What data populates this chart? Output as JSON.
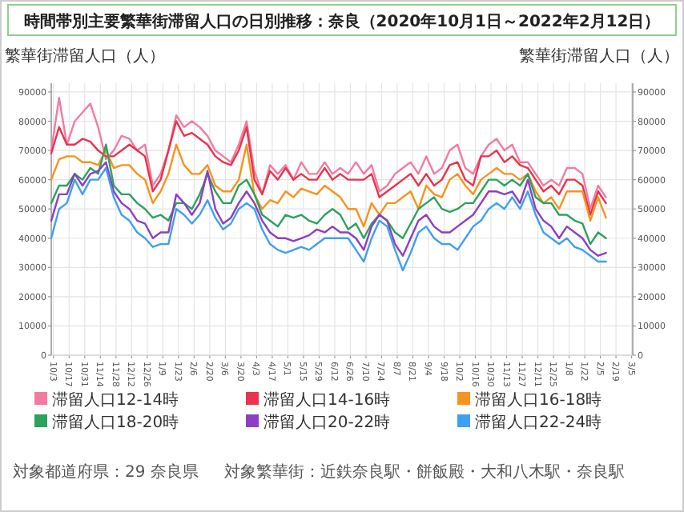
{
  "chart_data": {
    "type": "line",
    "title": "時間帯別主要繁華街滞留人口の日別推移：奈良（2020年10月1日～2022年2月12日）",
    "ylabel": "繁華街滞留人口（人）",
    "y2label": "繁華街滞留人口（人）",
    "annotations": [
      "対象都道府県：29 奈良県",
      "対象繁華街：近鉄奈良駅・餅飯殿・大和八木駅・奈良駅"
    ],
    "x": [
      "2020-10-01",
      "2020-10-08",
      "2020-10-15",
      "2020-10-22",
      "2020-10-29",
      "2020-11-05",
      "2020-11-12",
      "2020-11-19",
      "2020-11-26",
      "2020-12-03",
      "2020-12-10",
      "2020-12-17",
      "2020-12-24",
      "2020-12-31",
      "2021-01-07",
      "2021-01-14",
      "2021-01-21",
      "2021-01-28",
      "2021-02-04",
      "2021-02-11",
      "2021-02-18",
      "2021-02-25",
      "2021-03-04",
      "2021-03-11",
      "2021-03-18",
      "2021-03-25",
      "2021-04-01",
      "2021-04-08",
      "2021-04-15",
      "2021-04-22",
      "2021-04-29",
      "2021-05-06",
      "2021-05-13",
      "2021-05-20",
      "2021-05-27",
      "2021-06-03",
      "2021-06-10",
      "2021-06-17",
      "2021-06-24",
      "2021-07-01",
      "2021-07-08",
      "2021-07-15",
      "2021-07-22",
      "2021-07-29",
      "2021-08-05",
      "2021-08-12",
      "2021-08-19",
      "2021-08-26",
      "2021-09-02",
      "2021-09-09",
      "2021-09-16",
      "2021-09-23",
      "2021-09-30",
      "2021-10-07",
      "2021-10-14",
      "2021-10-21",
      "2021-10-28",
      "2021-11-04",
      "2021-11-11",
      "2021-11-18",
      "2021-11-25",
      "2021-12-02",
      "2021-12-09",
      "2021-12-16",
      "2021-12-23",
      "2021-12-30",
      "2022-01-06",
      "2022-01-13",
      "2022-01-20",
      "2022-01-27",
      "2022-02-03",
      "2022-02-10"
    ],
    "series": [
      {
        "name": "滞留人口12-14時",
        "color": "#f47ba0",
        "values": [
          70000,
          88000,
          72000,
          80000,
          83000,
          86000,
          78000,
          67000,
          70000,
          75000,
          74000,
          70000,
          72000,
          58000,
          62000,
          70000,
          82000,
          78000,
          80000,
          78000,
          75000,
          70000,
          68000,
          66000,
          72000,
          80000,
          63000,
          55000,
          65000,
          62000,
          65000,
          60000,
          66000,
          62000,
          62000,
          66000,
          62000,
          64000,
          62000,
          66000,
          62000,
          65000,
          56000,
          58000,
          62000,
          64000,
          66000,
          62000,
          68000,
          62000,
          64000,
          70000,
          72000,
          64000,
          62000,
          68000,
          72000,
          74000,
          70000,
          72000,
          66000,
          66000,
          62000,
          58000,
          60000,
          58000,
          64000,
          64000,
          62000,
          50000,
          58000,
          54000
        ]
      },
      {
        "name": "滞留人口14-16時",
        "color": "#e8344e",
        "values": [
          69000,
          78000,
          72000,
          72000,
          74000,
          73000,
          70000,
          68000,
          68000,
          70000,
          72000,
          70000,
          68000,
          56000,
          60000,
          70000,
          80000,
          75000,
          76000,
          74000,
          72000,
          68000,
          66000,
          65000,
          70000,
          78000,
          60000,
          55000,
          63000,
          60000,
          64000,
          60000,
          62000,
          60000,
          60000,
          64000,
          60000,
          62000,
          60000,
          60000,
          60000,
          62000,
          54000,
          56000,
          58000,
          60000,
          62000,
          58000,
          62000,
          58000,
          60000,
          65000,
          66000,
          60000,
          58000,
          68000,
          68000,
          70000,
          66000,
          68000,
          65000,
          64000,
          60000,
          56000,
          58000,
          55000,
          60000,
          60000,
          58000,
          48000,
          56000,
          52000
        ]
      },
      {
        "name": "滞留人口16-18時",
        "color": "#f7931e",
        "values": [
          60000,
          67000,
          68000,
          68000,
          66000,
          66000,
          65000,
          70000,
          64000,
          65000,
          65000,
          62000,
          60000,
          52000,
          56000,
          62000,
          72000,
          65000,
          62000,
          62000,
          65000,
          58000,
          56000,
          56000,
          60000,
          72000,
          55000,
          50000,
          53000,
          52000,
          56000,
          54000,
          57000,
          56000,
          55000,
          58000,
          56000,
          54000,
          50000,
          50000,
          44000,
          52000,
          48000,
          52000,
          52000,
          54000,
          56000,
          50000,
          58000,
          55000,
          54000,
          60000,
          62000,
          58000,
          55000,
          60000,
          62000,
          64000,
          62000,
          62000,
          60000,
          62000,
          56000,
          52000,
          54000,
          50000,
          56000,
          56000,
          56000,
          46000,
          54000,
          47000
        ]
      },
      {
        "name": "滞留人口18-20時",
        "color": "#2ca25f",
        "values": [
          52000,
          58000,
          58000,
          62000,
          60000,
          64000,
          62000,
          72000,
          58000,
          55000,
          55000,
          52000,
          50000,
          47000,
          48000,
          46000,
          52000,
          52000,
          50000,
          55000,
          62000,
          56000,
          52000,
          52000,
          58000,
          60000,
          55000,
          48000,
          46000,
          44000,
          48000,
          47000,
          48000,
          46000,
          45000,
          48000,
          50000,
          48000,
          43000,
          45000,
          40000,
          45000,
          48000,
          46000,
          42000,
          40000,
          45000,
          50000,
          52000,
          54000,
          50000,
          49000,
          50000,
          52000,
          52000,
          56000,
          60000,
          60000,
          58000,
          60000,
          58000,
          62000,
          54000,
          52000,
          52000,
          48000,
          48000,
          46000,
          45000,
          38000,
          42000,
          40000
        ]
      },
      {
        "name": "滞留人口20-22時",
        "color": "#8e3ec2",
        "values": [
          46000,
          55000,
          55000,
          62000,
          58000,
          62000,
          63000,
          66000,
          56000,
          52000,
          50000,
          46000,
          45000,
          40000,
          42000,
          42000,
          55000,
          52000,
          48000,
          52000,
          63000,
          50000,
          45000,
          47000,
          52000,
          56000,
          52000,
          46000,
          42000,
          40000,
          40000,
          39000,
          40000,
          41000,
          43000,
          42000,
          44000,
          42000,
          42000,
          40000,
          36000,
          44000,
          48000,
          46000,
          38000,
          34000,
          40000,
          46000,
          48000,
          44000,
          42000,
          42000,
          44000,
          46000,
          48000,
          52000,
          56000,
          56000,
          55000,
          56000,
          52000,
          60000,
          50000,
          46000,
          44000,
          40000,
          44000,
          42000,
          40000,
          36000,
          34000,
          35000
        ]
      },
      {
        "name": "滞留人口22-24時",
        "color": "#3fa0f0",
        "values": [
          40000,
          50000,
          52000,
          60000,
          55000,
          60000,
          60000,
          64000,
          54000,
          48000,
          46000,
          42000,
          40000,
          37000,
          38000,
          38000,
          50000,
          48000,
          45000,
          48000,
          53000,
          47000,
          43000,
          45000,
          50000,
          52000,
          50000,
          43000,
          38000,
          36000,
          35000,
          36000,
          37000,
          36000,
          38000,
          40000,
          40000,
          40000,
          40000,
          36000,
          32000,
          40000,
          46000,
          44000,
          36000,
          29000,
          35000,
          42000,
          44000,
          40000,
          38000,
          38000,
          36000,
          40000,
          44000,
          46000,
          50000,
          52000,
          50000,
          54000,
          50000,
          56000,
          48000,
          42000,
          40000,
          38000,
          40000,
          37000,
          36000,
          34000,
          32000,
          32000
        ]
      }
    ],
    "xlim": [
      "2020-10-01",
      "2022-03-06"
    ],
    "xticks": [
      {
        "value": "2020-10-03",
        "label": "10/3"
      },
      {
        "value": "2020-10-17",
        "label": "10/17"
      },
      {
        "value": "2020-10-31",
        "label": "10/31"
      },
      {
        "value": "2020-11-14",
        "label": "11/14"
      },
      {
        "value": "2020-11-28",
        "label": "11/28"
      },
      {
        "value": "2020-12-12",
        "label": "12/12"
      },
      {
        "value": "2020-12-26",
        "label": "12/26"
      },
      {
        "value": "2021-01-09",
        "label": "1/9"
      },
      {
        "value": "2021-01-23",
        "label": "1/23"
      },
      {
        "value": "2021-02-06",
        "label": "2/6"
      },
      {
        "value": "2021-02-20",
        "label": "2/20"
      },
      {
        "value": "2021-03-06",
        "label": "3/6"
      },
      {
        "value": "2021-03-20",
        "label": "3/20"
      },
      {
        "value": "2021-04-03",
        "label": "4/3"
      },
      {
        "value": "2021-04-17",
        "label": "4/17"
      },
      {
        "value": "2021-05-01",
        "label": "5/1"
      },
      {
        "value": "2021-05-15",
        "label": "5/15"
      },
      {
        "value": "2021-05-29",
        "label": "5/29"
      },
      {
        "value": "2021-06-12",
        "label": "6/12"
      },
      {
        "value": "2021-06-26",
        "label": "6/26"
      },
      {
        "value": "2021-07-10",
        "label": "7/10"
      },
      {
        "value": "2021-07-24",
        "label": "7/24"
      },
      {
        "value": "2021-08-07",
        "label": "8/7"
      },
      {
        "value": "2021-08-21",
        "label": "8/21"
      },
      {
        "value": "2021-09-04",
        "label": "9/4"
      },
      {
        "value": "2021-09-18",
        "label": "9/18"
      },
      {
        "value": "2021-10-02",
        "label": "10/2"
      },
      {
        "value": "2021-10-16",
        "label": "10/16"
      },
      {
        "value": "2021-10-30",
        "label": "10/30"
      },
      {
        "value": "2021-11-13",
        "label": "11/13"
      },
      {
        "value": "2021-11-27",
        "label": "11/27"
      },
      {
        "value": "2021-12-11",
        "label": "12/11"
      },
      {
        "value": "2021-12-25",
        "label": "12/25"
      },
      {
        "value": "2022-01-08",
        "label": "1/8"
      },
      {
        "value": "2022-01-22",
        "label": "1/22"
      },
      {
        "value": "2022-02-05",
        "label": "2/5"
      },
      {
        "value": "2022-02-19",
        "label": "2/19"
      },
      {
        "value": "2022-03-05",
        "label": "3/5"
      }
    ],
    "ylim": [
      0,
      93000
    ],
    "yticks": [
      0,
      10000,
      20000,
      30000,
      40000,
      50000,
      60000,
      70000,
      80000,
      90000
    ],
    "y2lim": [
      0,
      93000
    ],
    "y2ticks": [
      0,
      10000,
      20000,
      30000,
      40000,
      50000,
      60000,
      70000,
      80000,
      90000
    ],
    "grid": true,
    "legend": "bottom"
  }
}
